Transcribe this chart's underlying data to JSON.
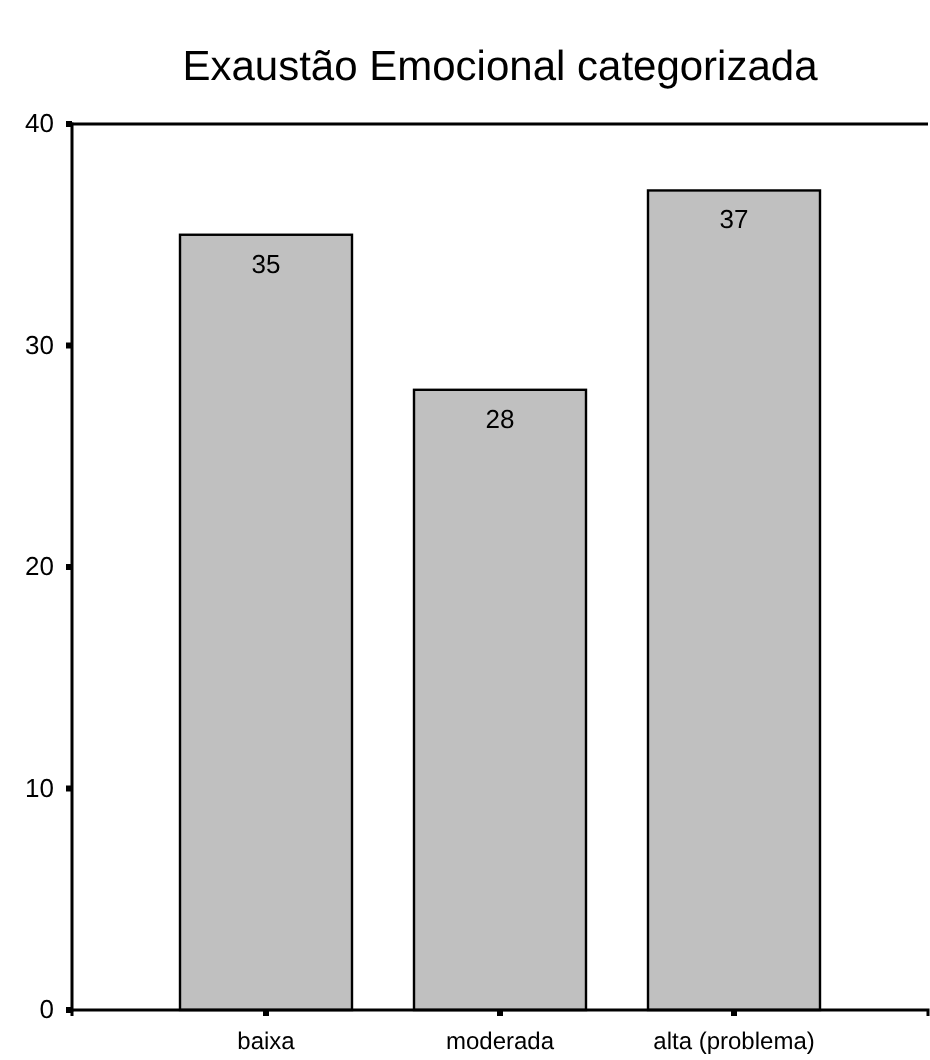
{
  "chart_data": {
    "type": "bar",
    "title": "Exaustão Emocional categorizada",
    "categories": [
      "baixa",
      "moderada",
      "alta (problema)"
    ],
    "values": [
      35,
      28,
      37
    ],
    "color": "#c0c0c0",
    "ylim": [
      0,
      40
    ],
    "yticks": [
      0,
      10,
      20,
      30,
      40
    ],
    "grid": false,
    "data_labels": true
  }
}
